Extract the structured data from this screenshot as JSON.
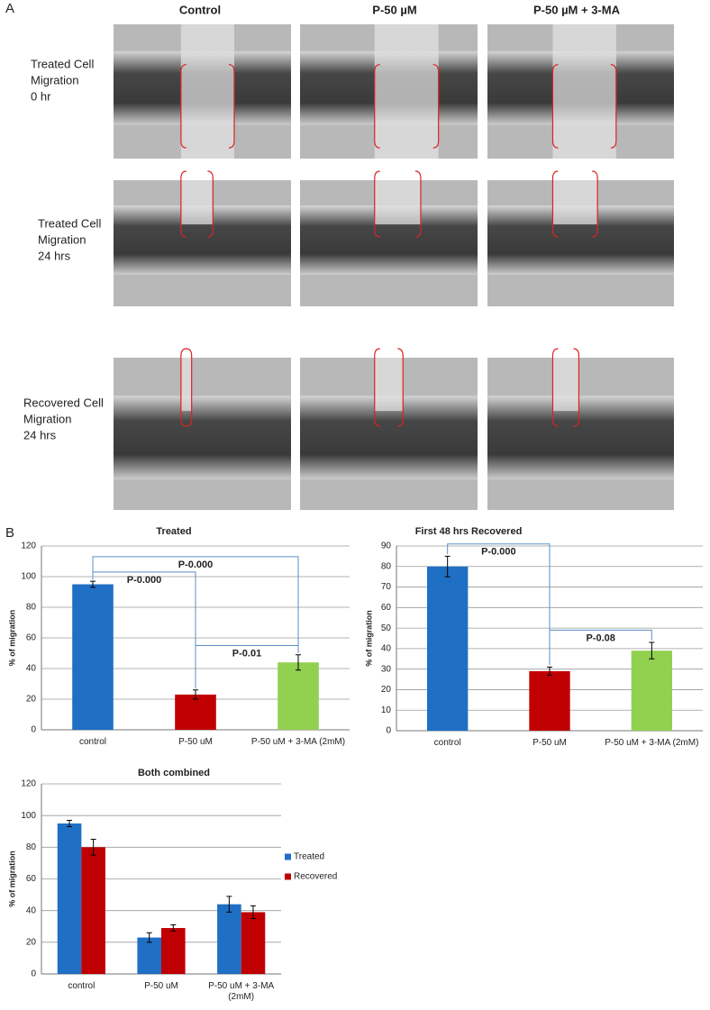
{
  "panel_a": {
    "label": "A",
    "columns": [
      "Control",
      "P-50 µM",
      "P-50 µM + 3-MA"
    ],
    "rows": [
      [
        "Treated Cell",
        "Migration",
        "0 hr"
      ],
      [
        "Treated Cell",
        "Migration",
        "24 hrs"
      ],
      [
        "Recovered Cell",
        "Migration",
        "24 hrs"
      ]
    ]
  },
  "panel_b_label": "B",
  "chart_data": [
    {
      "type": "bar",
      "title": "Treated",
      "ylabel": "% of migration",
      "categories": [
        "control",
        "P-50 uM",
        "P-50 uM + 3-MA (2mM)"
      ],
      "values": [
        95,
        23,
        44
      ],
      "errors": [
        2,
        3,
        5
      ],
      "colors": [
        "#1f6fc5",
        "#c00000",
        "#92d050"
      ],
      "ylim": [
        0,
        120
      ],
      "yticks": [
        0,
        20,
        40,
        60,
        80,
        100,
        120
      ],
      "grid": true,
      "annotations": [
        {
          "label": "P-0.000",
          "between": [
            0,
            1
          ]
        },
        {
          "label": "P-0.000",
          "between": [
            0,
            2
          ]
        },
        {
          "label": "P-0.01",
          "between": [
            1,
            2
          ]
        }
      ]
    },
    {
      "type": "bar",
      "title": "First 48 hrs Recovered",
      "ylabel": "% of migration",
      "categories": [
        "control",
        "P-50 uM",
        "P-50 uM + 3-MA (2mM)"
      ],
      "values": [
        80,
        29,
        39
      ],
      "errors": [
        5,
        2,
        4
      ],
      "colors": [
        "#1f6fc5",
        "#c00000",
        "#92d050"
      ],
      "ylim": [
        0,
        90
      ],
      "yticks": [
        0,
        10,
        20,
        30,
        40,
        50,
        60,
        70,
        80,
        90
      ],
      "grid": true,
      "annotations": [
        {
          "label": "P-0.000",
          "between": [
            0,
            1
          ]
        },
        {
          "label": "P-0.08",
          "between": [
            1,
            2
          ]
        }
      ]
    },
    {
      "type": "grouped-bar",
      "title": "Both combined",
      "ylabel": "% of migration",
      "categories": [
        "control",
        "P-50 uM",
        "P-50 uM + 3-MA (2mM)"
      ],
      "series": [
        {
          "name": "Treated",
          "color": "#1f6fc5",
          "values": [
            95,
            23,
            44
          ],
          "errors": [
            2,
            3,
            5
          ]
        },
        {
          "name": "Recovered",
          "color": "#c00000",
          "values": [
            80,
            29,
            39
          ],
          "errors": [
            5,
            2,
            4
          ]
        }
      ],
      "ylim": [
        0,
        120
      ],
      "yticks": [
        0,
        20,
        40,
        60,
        80,
        100,
        120
      ],
      "grid": true,
      "legend": "right"
    }
  ]
}
